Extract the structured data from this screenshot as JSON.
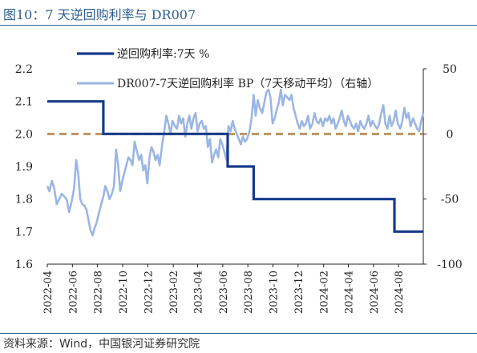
{
  "figure": {
    "title": "图10：7 天逆回购利率与 DR007",
    "source": "资料来源：Wind，中国银河证券研究院"
  },
  "colors": {
    "title": "#2e5f8f",
    "policy_rate": "#163b8c",
    "dr007": "#9bb6e3",
    "zero_line": "#b99462",
    "axis": "#222222"
  },
  "chart_data": {
    "type": "line",
    "x_type": "date",
    "xlim": [
      "2022-04-01",
      "2024-09-30"
    ],
    "x_ticks": [
      "2022-04",
      "2022-06",
      "2022-08",
      "2022-10",
      "2022-12",
      "2023-02",
      "2023-04",
      "2023-06",
      "2023-08",
      "2023-10",
      "2023-12",
      "2024-02",
      "2024-04",
      "2024-06",
      "2024-08"
    ],
    "y_left": {
      "lim": [
        1.6,
        2.2
      ],
      "ticks": [
        "1.6",
        "1.7",
        "1.8",
        "1.9",
        "2.0",
        "2.1",
        "2.2"
      ]
    },
    "y_right": {
      "lim": [
        -100,
        50
      ],
      "ticks": [
        "50",
        "0",
        "-50",
        "-100"
      ],
      "ref_line": 0
    },
    "legend": {
      "position": "top-left"
    },
    "grid": false,
    "series": [
      {
        "name": "逆回购利率:7天 %",
        "axis": "left",
        "style": "step",
        "points": [
          [
            "2022-04-01",
            2.1
          ],
          [
            "2022-08-15",
            2.0
          ],
          [
            "2023-06-13",
            1.9
          ],
          [
            "2023-08-15",
            1.8
          ],
          [
            "2024-07-22",
            1.7
          ],
          [
            "2024-09-30",
            1.7
          ]
        ]
      },
      {
        "name": "DR007-7天逆回购利率 BP（7天移动平均）（右轴）",
        "axis": "right",
        "style": "line",
        "points": [
          [
            "2022-04-01",
            -40
          ],
          [
            "2022-04-06",
            -44
          ],
          [
            "2022-04-12",
            -36
          ],
          [
            "2022-04-18",
            -42
          ],
          [
            "2022-04-24",
            -54
          ],
          [
            "2022-04-30",
            -50
          ],
          [
            "2022-05-06",
            -46
          ],
          [
            "2022-05-12",
            -48
          ],
          [
            "2022-05-18",
            -50
          ],
          [
            "2022-05-24",
            -60
          ],
          [
            "2022-05-30",
            -52
          ],
          [
            "2022-06-05",
            -42
          ],
          [
            "2022-06-10",
            -20
          ],
          [
            "2022-06-15",
            -30
          ],
          [
            "2022-06-20",
            -50
          ],
          [
            "2022-06-25",
            -54
          ],
          [
            "2022-06-30",
            -55
          ],
          [
            "2022-07-05",
            -58
          ],
          [
            "2022-07-10",
            -66
          ],
          [
            "2022-07-15",
            -74
          ],
          [
            "2022-07-20",
            -78
          ],
          [
            "2022-07-25",
            -72
          ],
          [
            "2022-07-30",
            -68
          ],
          [
            "2022-08-05",
            -60
          ],
          [
            "2022-08-10",
            -54
          ],
          [
            "2022-08-15",
            -48
          ],
          [
            "2022-08-20",
            -40
          ],
          [
            "2022-08-25",
            -44
          ],
          [
            "2022-08-30",
            -50
          ],
          [
            "2022-09-05",
            -46
          ],
          [
            "2022-09-10",
            -40
          ],
          [
            "2022-09-15",
            -12
          ],
          [
            "2022-09-20",
            -24
          ],
          [
            "2022-09-25",
            -44
          ],
          [
            "2022-09-30",
            -36
          ],
          [
            "2022-10-05",
            -30
          ],
          [
            "2022-10-10",
            -24
          ],
          [
            "2022-10-15",
            -18
          ],
          [
            "2022-10-20",
            -20
          ],
          [
            "2022-10-25",
            -24
          ],
          [
            "2022-10-30",
            -6
          ],
          [
            "2022-11-05",
            -14
          ],
          [
            "2022-11-10",
            -20
          ],
          [
            "2022-11-15",
            -16
          ],
          [
            "2022-11-20",
            -28
          ],
          [
            "2022-11-25",
            -24
          ],
          [
            "2022-11-30",
            -38
          ],
          [
            "2022-12-05",
            -18
          ],
          [
            "2022-12-10",
            -10
          ],
          [
            "2022-12-15",
            -14
          ],
          [
            "2022-12-20",
            -20
          ],
          [
            "2022-12-25",
            -16
          ],
          [
            "2022-12-30",
            -24
          ],
          [
            "2023-01-05",
            -8
          ],
          [
            "2023-01-10",
            2
          ],
          [
            "2023-01-15",
            14
          ],
          [
            "2023-01-20",
            8
          ],
          [
            "2023-01-25",
            0
          ],
          [
            "2023-01-30",
            10
          ],
          [
            "2023-02-05",
            6
          ],
          [
            "2023-02-10",
            4
          ],
          [
            "2023-02-15",
            14
          ],
          [
            "2023-02-20",
            8
          ],
          [
            "2023-02-25",
            12
          ],
          [
            "2023-03-02",
            -2
          ],
          [
            "2023-03-07",
            8
          ],
          [
            "2023-03-12",
            14
          ],
          [
            "2023-03-17",
            4
          ],
          [
            "2023-03-22",
            12
          ],
          [
            "2023-03-27",
            16
          ],
          [
            "2023-04-01",
            2
          ],
          [
            "2023-04-06",
            8
          ],
          [
            "2023-04-11",
            10
          ],
          [
            "2023-04-16",
            4
          ],
          [
            "2023-04-21",
            6
          ],
          [
            "2023-04-26",
            -10
          ],
          [
            "2023-05-01",
            -4
          ],
          [
            "2023-05-06",
            -22
          ],
          [
            "2023-05-11",
            -16
          ],
          [
            "2023-05-16",
            -12
          ],
          [
            "2023-05-21",
            -18
          ],
          [
            "2023-05-26",
            -4
          ],
          [
            "2023-05-31",
            -8
          ],
          [
            "2023-06-05",
            -14
          ],
          [
            "2023-06-10",
            -20
          ],
          [
            "2023-06-15",
            6
          ],
          [
            "2023-06-20",
            2
          ],
          [
            "2023-06-25",
            10
          ],
          [
            "2023-06-30",
            4
          ],
          [
            "2023-07-05",
            0
          ],
          [
            "2023-07-10",
            -4
          ],
          [
            "2023-07-15",
            -8
          ],
          [
            "2023-07-20",
            -2
          ],
          [
            "2023-07-25",
            -6
          ],
          [
            "2023-07-30",
            -4
          ],
          [
            "2023-08-05",
            2
          ],
          [
            "2023-08-10",
            12
          ],
          [
            "2023-08-15",
            30
          ],
          [
            "2023-08-20",
            14
          ],
          [
            "2023-08-25",
            26
          ],
          [
            "2023-08-30",
            20
          ],
          [
            "2023-09-05",
            16
          ],
          [
            "2023-09-10",
            24
          ],
          [
            "2023-09-15",
            32
          ],
          [
            "2023-09-20",
            34
          ],
          [
            "2023-09-25",
            28
          ],
          [
            "2023-09-30",
            8
          ],
          [
            "2023-10-05",
            12
          ],
          [
            "2023-10-10",
            18
          ],
          [
            "2023-10-15",
            24
          ],
          [
            "2023-10-20",
            34
          ],
          [
            "2023-10-25",
            22
          ],
          [
            "2023-10-30",
            30
          ],
          [
            "2023-11-05",
            28
          ],
          [
            "2023-11-10",
            26
          ],
          [
            "2023-11-15",
            30
          ],
          [
            "2023-11-20",
            20
          ],
          [
            "2023-11-25",
            14
          ],
          [
            "2023-11-30",
            8
          ],
          [
            "2023-12-05",
            4
          ],
          [
            "2023-12-10",
            10
          ],
          [
            "2023-12-15",
            6
          ],
          [
            "2023-12-20",
            8
          ],
          [
            "2023-12-25",
            14
          ],
          [
            "2023-12-30",
            4
          ],
          [
            "2024-01-05",
            8
          ],
          [
            "2024-01-10",
            16
          ],
          [
            "2024-01-15",
            10
          ],
          [
            "2024-01-20",
            8
          ],
          [
            "2024-01-25",
            12
          ],
          [
            "2024-01-30",
            6
          ],
          [
            "2024-02-05",
            12
          ],
          [
            "2024-02-10",
            10
          ],
          [
            "2024-02-15",
            14
          ],
          [
            "2024-02-20",
            8
          ],
          [
            "2024-02-25",
            12
          ],
          [
            "2024-03-01",
            4
          ],
          [
            "2024-03-06",
            8
          ],
          [
            "2024-03-11",
            12
          ],
          [
            "2024-03-16",
            18
          ],
          [
            "2024-03-21",
            10
          ],
          [
            "2024-03-26",
            6
          ],
          [
            "2024-03-31",
            14
          ],
          [
            "2024-04-05",
            10
          ],
          [
            "2024-04-10",
            6
          ],
          [
            "2024-04-15",
            4
          ],
          [
            "2024-04-20",
            8
          ],
          [
            "2024-04-25",
            2
          ],
          [
            "2024-04-30",
            10
          ],
          [
            "2024-05-05",
            6
          ],
          [
            "2024-05-10",
            4
          ],
          [
            "2024-05-15",
            8
          ],
          [
            "2024-05-20",
            14
          ],
          [
            "2024-05-25",
            6
          ],
          [
            "2024-05-30",
            10
          ],
          [
            "2024-06-05",
            6
          ],
          [
            "2024-06-10",
            4
          ],
          [
            "2024-06-15",
            8
          ],
          [
            "2024-06-20",
            16
          ],
          [
            "2024-06-25",
            22
          ],
          [
            "2024-06-30",
            8
          ],
          [
            "2024-07-05",
            4
          ],
          [
            "2024-07-10",
            14
          ],
          [
            "2024-07-15",
            6
          ],
          [
            "2024-07-20",
            10
          ],
          [
            "2024-07-25",
            18
          ],
          [
            "2024-07-30",
            8
          ],
          [
            "2024-08-05",
            4
          ],
          [
            "2024-08-10",
            10
          ],
          [
            "2024-08-15",
            20
          ],
          [
            "2024-08-20",
            12
          ],
          [
            "2024-08-25",
            16
          ],
          [
            "2024-08-30",
            6
          ],
          [
            "2024-09-05",
            12
          ],
          [
            "2024-09-10",
            8
          ],
          [
            "2024-09-15",
            4
          ],
          [
            "2024-09-20",
            2
          ],
          [
            "2024-09-25",
            10
          ],
          [
            "2024-09-30",
            16
          ]
        ]
      }
    ]
  }
}
